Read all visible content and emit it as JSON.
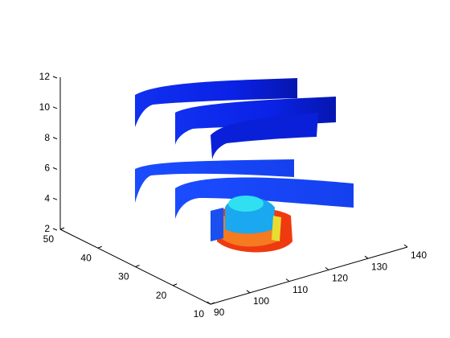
{
  "chart_data": {
    "type": "ribbon3d",
    "xlim": [
      90,
      140
    ],
    "xticks": [
      90,
      100,
      110,
      120,
      130,
      140
    ],
    "ylim": [
      10,
      50
    ],
    "yticks": [
      10,
      20,
      30,
      40,
      50
    ],
    "zlim": [
      2,
      12
    ],
    "zticks": [
      2,
      4,
      6,
      8,
      10,
      12
    ]
  }
}
